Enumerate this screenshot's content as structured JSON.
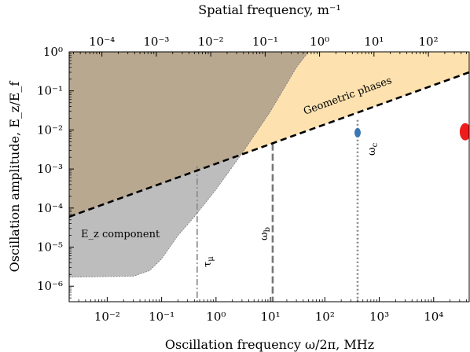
{
  "chart_data": {
    "type": "area",
    "title": "",
    "xlabel": "Oscillation frequency ω/2π, MHz",
    "ylabel": "Oscillation amplitude, E_z/E_f",
    "x2label": "Spatial frequency, m⁻¹",
    "x_scale": "log",
    "y_scale": "log",
    "xlim": [
      0.002,
      45000
    ],
    "ylim": [
      4e-07,
      1
    ],
    "grid": false,
    "x_ticks": [
      {
        "value": 0.01,
        "label": "10⁻²"
      },
      {
        "value": 0.1,
        "label": "10⁻¹"
      },
      {
        "value": 1,
        "label": "10⁰"
      },
      {
        "value": 10,
        "label": "10¹"
      },
      {
        "value": 100,
        "label": "10²"
      },
      {
        "value": 1000,
        "label": "10³"
      },
      {
        "value": 10000,
        "label": "10⁴"
      }
    ],
    "y_ticks": [
      {
        "value": 1,
        "label": "10⁰"
      },
      {
        "value": 0.1,
        "label": "10⁻¹"
      },
      {
        "value": 0.01,
        "label": "10⁻²"
      },
      {
        "value": 0.001,
        "label": "10⁻³"
      },
      {
        "value": 0.0001,
        "label": "10⁻⁴"
      },
      {
        "value": 1e-05,
        "label": "10⁻⁵"
      },
      {
        "value": 1e-06,
        "label": "10⁻⁶"
      }
    ],
    "x2_ticks": [
      {
        "value": 0.0001,
        "label": "10⁻⁴"
      },
      {
        "value": 0.001,
        "label": "10⁻³"
      },
      {
        "value": 0.01,
        "label": "10⁻²"
      },
      {
        "value": 0.1,
        "label": "10⁻¹"
      },
      {
        "value": 1,
        "label": "10⁰"
      },
      {
        "value": 10,
        "label": "10¹"
      },
      {
        "value": 100,
        "label": "10²"
      }
    ],
    "x2_per_x": 0.0125,
    "regions": [
      {
        "name": "Geometric phases",
        "color": "#fde2b0",
        "lower_boundary": [
          [
            0.002,
            6e-05
          ],
          [
            45000,
            0.3
          ]
        ],
        "upper_boundary": [
          [
            0.002,
            1
          ],
          [
            45000,
            1
          ]
        ]
      },
      {
        "name": "E_z component",
        "color": "#bdbdbd",
        "boundary": [
          [
            0.002,
            1.7e-06
          ],
          [
            0.03,
            1.8e-06
          ],
          [
            0.06,
            2.5e-06
          ],
          [
            0.1,
            5e-06
          ],
          [
            0.2,
            2e-05
          ],
          [
            0.4,
            6e-05
          ],
          [
            1,
            0.0003
          ],
          [
            3,
            0.0025
          ],
          [
            10,
            0.03
          ],
          [
            30,
            0.4
          ],
          [
            50,
            1
          ]
        ]
      },
      {
        "name": "overlap",
        "color": "#b8a890"
      }
    ],
    "diagonal_line": {
      "style": "dashed",
      "color": "#000000",
      "points": [
        [
          0.002,
          6e-05
        ],
        [
          45000,
          0.3
        ]
      ]
    },
    "vertical_lines": [
      {
        "label": "τ_μ",
        "x": 0.45,
        "y_top": 0.0012,
        "style": "dashdot",
        "color": "#888888"
      },
      {
        "label": "ω_b",
        "x": 11,
        "y_top": 0.0045,
        "style": "dashed",
        "color": "#777777"
      },
      {
        "label": "ω_c",
        "x": 400,
        "y_top": 0.018,
        "style": "dotted",
        "color": "#888888"
      }
    ],
    "points": [
      {
        "name": "blue",
        "x": 400,
        "y": 0.0085,
        "color": "#3b78b3"
      },
      {
        "name": "red",
        "x": 38000,
        "y": 0.009,
        "color": "#ee1c1c"
      }
    ],
    "annotations": {
      "geometric_phases": "Geometric phases",
      "ez_component": "E_z component"
    }
  }
}
